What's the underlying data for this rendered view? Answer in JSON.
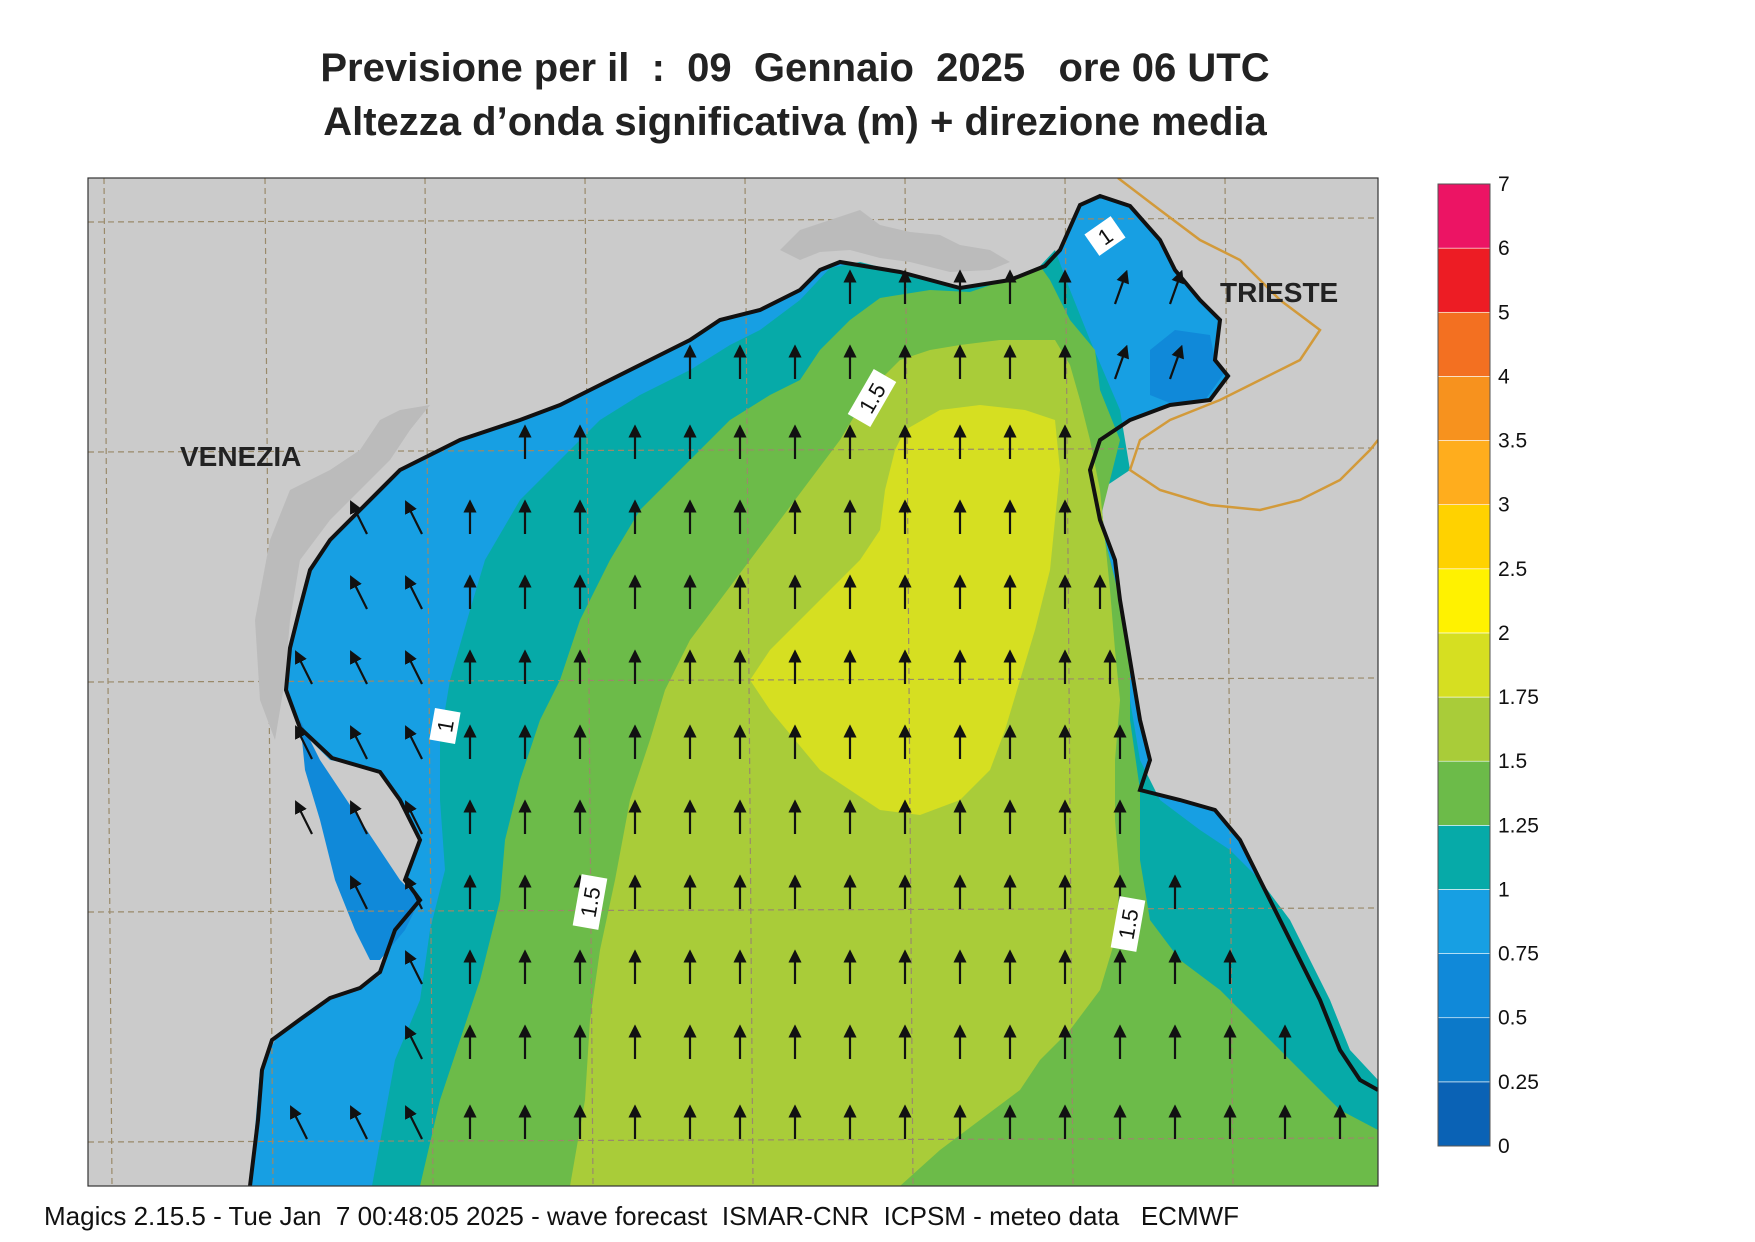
{
  "title_line1": "Previsione per il  :  09  Gennaio  2025   ore 06 UTC",
  "title_line2": "Altezza d’onda significativa (m) + direzione media",
  "footer": "Magics 2.15.5 - Tue Jan  7 00:48:05 2025 - wave forecast  ISMAR-CNR  ICPSM - meteo data   ECMWF",
  "places": {
    "venezia": "VENEZIA",
    "trieste": "TRIESTE"
  },
  "contour_labels": [
    "1",
    "1.5",
    "1.5",
    "1",
    "1.5"
  ],
  "colorbar": {
    "levels": [
      "0",
      "0.25",
      "0.5",
      "0.75",
      "1",
      "1.25",
      "1.5",
      "1.75",
      "2",
      "2.5",
      "3",
      "3.5",
      "4",
      "5",
      "6",
      "7"
    ],
    "colors": [
      "#0a62b5",
      "#0c79c9",
      "#1089d9",
      "#179fe3",
      "#06aaa8",
      "#6cbb49",
      "#a9cc39",
      "#d6df21",
      "#fff200",
      "#ffd200",
      "#ffad1d",
      "#f7921e",
      "#f37021",
      "#ed1c24",
      "#ec1464"
    ]
  },
  "map_colors": {
    "land": "#cbcbcb",
    "lagoon": "#bbbbbb",
    "coast": "#111111",
    "border": "#d29a3a",
    "grid": "#9a8a6a",
    "arrow": "#111111"
  }
}
